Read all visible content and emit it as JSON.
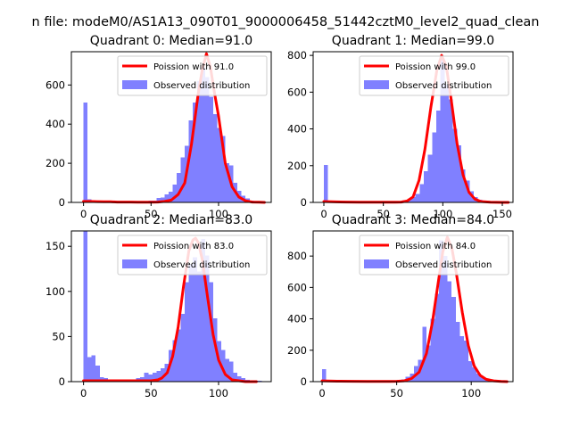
{
  "suptitle": "n file: modeM0/AS1A13_090T01_9000006458_51442cztM0_level2_quad_clean",
  "colors": {
    "hist": "#8080ff",
    "fit": "#ff0000",
    "axis": "#000000"
  },
  "chart_data": [
    {
      "type": "bar",
      "title": "Quadrant 0: Median=91.0",
      "xlim": [
        -9,
        139
      ],
      "ylim": [
        0,
        770
      ],
      "xticks": [
        0,
        50,
        100
      ],
      "yticks": [
        0,
        200,
        400,
        600
      ],
      "legend": {
        "position": "top-right",
        "fit_label": "Poission with 91.0",
        "hist_label": "Observed distribution"
      },
      "bin_width": 3,
      "bin_starts": [
        0,
        3,
        6,
        9,
        12,
        15,
        18,
        21,
        24,
        27,
        30,
        33,
        36,
        39,
        42,
        45,
        48,
        51,
        54,
        57,
        60,
        63,
        66,
        69,
        72,
        75,
        78,
        81,
        84,
        87,
        90,
        93,
        96,
        99,
        102,
        105,
        108,
        111,
        114,
        117,
        120,
        123,
        126,
        129
      ],
      "counts": [
        510,
        15,
        12,
        8,
        5,
        4,
        3,
        3,
        3,
        2,
        2,
        3,
        3,
        4,
        6,
        6,
        8,
        10,
        22,
        25,
        40,
        55,
        90,
        150,
        230,
        290,
        420,
        510,
        620,
        690,
        640,
        540,
        450,
        380,
        340,
        200,
        190,
        100,
        60,
        35,
        20,
        10,
        5,
        3
      ],
      "fit_mean": 91.0,
      "fit_peak": 760,
      "fit_x": [
        0,
        5,
        10,
        15,
        20,
        25,
        30,
        35,
        40,
        45,
        50,
        55,
        60,
        65,
        70,
        75,
        80,
        85,
        88,
        91,
        94,
        97,
        100,
        105,
        110,
        115,
        120,
        125,
        130,
        134
      ],
      "fit_y": [
        5,
        5,
        4,
        3,
        3,
        2,
        2,
        2,
        1,
        1,
        1,
        2,
        5,
        12,
        40,
        100,
        300,
        560,
        680,
        760,
        690,
        560,
        440,
        200,
        80,
        28,
        8,
        2,
        1,
        0
      ]
    },
    {
      "type": "bar",
      "title": "Quadrant 1: Median=99.0",
      "xlim": [
        -9,
        159
      ],
      "ylim": [
        0,
        820
      ],
      "xticks": [
        0,
        50,
        100,
        150
      ],
      "yticks": [
        0,
        200,
        400,
        600,
        800
      ],
      "legend": {
        "position": "top-right",
        "fit_label": "Poission with 99.0",
        "hist_label": "Observed distribution"
      },
      "bin_width": 3.5,
      "bin_starts": [
        0,
        3.5,
        7,
        10.5,
        14,
        17.5,
        21,
        24.5,
        28,
        31.5,
        35,
        38.5,
        42,
        45.5,
        49,
        52.5,
        56,
        59.5,
        63,
        66.5,
        70,
        73.5,
        77,
        80.5,
        84,
        87.5,
        91,
        94.5,
        98,
        101.5,
        105,
        108.5,
        112,
        115.5,
        119,
        122.5,
        126,
        129.5,
        133,
        136.5,
        140,
        143.5,
        147,
        150.5
      ],
      "counts": [
        205,
        8,
        5,
        4,
        3,
        3,
        2,
        2,
        2,
        2,
        2,
        2,
        2,
        2,
        3,
        3,
        4,
        5,
        8,
        12,
        18,
        30,
        45,
        100,
        170,
        260,
        380,
        500,
        780,
        640,
        560,
        400,
        310,
        180,
        120,
        60,
        30,
        15,
        8,
        4,
        2,
        1,
        1,
        1
      ],
      "fit_mean": 99.0,
      "fit_peak": 800,
      "fit_x": [
        0,
        10,
        20,
        30,
        40,
        50,
        60,
        65,
        70,
        75,
        80,
        85,
        90,
        95,
        99,
        103,
        107,
        112,
        117,
        122,
        127,
        132,
        140,
        150,
        155
      ],
      "fit_y": [
        5,
        3,
        2,
        1,
        1,
        1,
        1,
        2,
        8,
        30,
        120,
        290,
        520,
        720,
        800,
        740,
        560,
        320,
        150,
        55,
        18,
        5,
        1,
        0,
        0
      ]
    },
    {
      "type": "bar",
      "title": "Quadrant 2: Median=83.0",
      "xlim": [
        -9,
        139
      ],
      "ylim": [
        0,
        167
      ],
      "xticks": [
        0,
        50,
        100
      ],
      "yticks": [
        0,
        50,
        100,
        150
      ],
      "legend": {
        "position": "top-right",
        "fit_label": "Poission with 83.0",
        "hist_label": "Observed distribution"
      },
      "bin_width": 3,
      "bin_starts": [
        0,
        3,
        6,
        9,
        12,
        15,
        18,
        21,
        24,
        27,
        30,
        33,
        36,
        39,
        42,
        45,
        48,
        51,
        54,
        57,
        60,
        63,
        66,
        69,
        72,
        75,
        78,
        81,
        84,
        87,
        90,
        93,
        96,
        99,
        102,
        105,
        108,
        111,
        114,
        117,
        120,
        123,
        126,
        129
      ],
      "counts": [
        167,
        27,
        29,
        18,
        5,
        4,
        2,
        1,
        1,
        1,
        1,
        2,
        2,
        4,
        5,
        10,
        8,
        10,
        12,
        15,
        20,
        35,
        46,
        58,
        75,
        110,
        130,
        138,
        122,
        158,
        140,
        110,
        70,
        45,
        35,
        25,
        22,
        10,
        6,
        4,
        2,
        1,
        1,
        1
      ],
      "fit_mean": 83.0,
      "fit_peak": 159,
      "fit_x": [
        0,
        5,
        10,
        15,
        20,
        25,
        30,
        35,
        40,
        45,
        50,
        55,
        58,
        62,
        66,
        70,
        74,
        78,
        81,
        83,
        85,
        88,
        92,
        96,
        100,
        105,
        110,
        115,
        120,
        128
      ],
      "fit_y": [
        1,
        1,
        1,
        1,
        1,
        1,
        1,
        1,
        1,
        1,
        1,
        2,
        4,
        10,
        28,
        60,
        105,
        145,
        157,
        159,
        154,
        135,
        92,
        52,
        24,
        8,
        2,
        1,
        0,
        0
      ]
    },
    {
      "type": "bar",
      "title": "Quadrant 3: Median=84.0",
      "xlim": [
        -6,
        128
      ],
      "ylim": [
        0,
        960
      ],
      "xticks": [
        0,
        50,
        100
      ],
      "yticks": [
        0,
        200,
        400,
        600,
        800
      ],
      "legend": {
        "position": "top-right",
        "fit_label": "Poission with 84.0",
        "hist_label": "Observed distribution"
      },
      "bin_width": 2.8,
      "bin_starts": [
        0,
        2.8,
        5.6,
        8.4,
        11.2,
        14,
        16.8,
        19.6,
        22.4,
        25.2,
        28,
        30.8,
        33.6,
        36.4,
        39.2,
        42,
        44.8,
        47.6,
        50.4,
        53.2,
        56,
        58.8,
        61.6,
        64.4,
        67.2,
        70,
        72.8,
        75.6,
        78.4,
        81.2,
        84,
        86.8,
        89.6,
        92.4,
        95.2,
        98,
        100.8,
        103.6,
        106.4,
        109.2,
        112,
        114.8,
        117.6,
        120.4
      ],
      "counts": [
        80,
        5,
        4,
        3,
        2,
        2,
        2,
        1,
        1,
        1,
        1,
        1,
        1,
        1,
        1,
        2,
        3,
        5,
        8,
        15,
        30,
        50,
        100,
        140,
        350,
        230,
        400,
        560,
        900,
        800,
        640,
        540,
        380,
        290,
        260,
        130,
        90,
        50,
        30,
        15,
        8,
        4,
        2,
        1
      ],
      "fit_mean": 84.0,
      "fit_peak": 920,
      "fit_x": [
        0,
        10,
        20,
        30,
        40,
        45,
        50,
        55,
        60,
        65,
        70,
        74,
        78,
        81,
        84,
        87,
        90,
        94,
        98,
        102,
        106,
        110,
        115,
        120,
        124
      ],
      "fit_y": [
        5,
        3,
        2,
        1,
        1,
        1,
        2,
        5,
        20,
        60,
        180,
        380,
        640,
        830,
        920,
        850,
        690,
        440,
        230,
        100,
        40,
        15,
        5,
        1,
        0
      ]
    }
  ]
}
